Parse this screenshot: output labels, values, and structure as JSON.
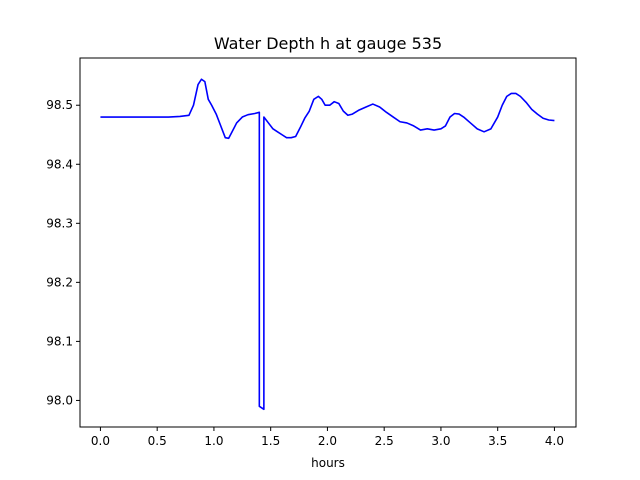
{
  "chart_data": {
    "type": "line",
    "title": "Water Depth h at gauge 535",
    "xlabel": "hours",
    "ylabel": "",
    "xlim": [
      -0.18,
      4.19
    ],
    "ylim": [
      97.955,
      98.58
    ],
    "xticks": [
      0.0,
      0.5,
      1.0,
      1.5,
      2.0,
      2.5,
      3.0,
      3.5,
      4.0
    ],
    "xtick_labels": [
      "0.0",
      "0.5",
      "1.0",
      "1.5",
      "2.0",
      "2.5",
      "3.0",
      "3.5",
      "4.0"
    ],
    "yticks": [
      98.0,
      98.1,
      98.2,
      98.3,
      98.4,
      98.5
    ],
    "ytick_labels": [
      "98.0",
      "98.1",
      "98.2",
      "98.3",
      "98.4",
      "98.5"
    ],
    "grid": false,
    "series": [
      {
        "color": "#0000ff",
        "x": [
          0.0,
          0.3,
          0.6,
          0.7,
          0.78,
          0.82,
          0.86,
          0.89,
          0.92,
          0.95,
          0.98,
          1.02,
          1.06,
          1.1,
          1.13,
          1.16,
          1.2,
          1.25,
          1.3,
          1.36,
          1.4,
          1.4,
          1.44,
          1.44,
          1.48,
          1.52,
          1.56,
          1.6,
          1.64,
          1.68,
          1.72,
          1.76,
          1.8,
          1.84,
          1.88,
          1.92,
          1.95,
          1.98,
          2.02,
          2.06,
          2.1,
          2.14,
          2.18,
          2.22,
          2.28,
          2.34,
          2.4,
          2.46,
          2.52,
          2.58,
          2.64,
          2.7,
          2.76,
          2.82,
          2.88,
          2.94,
          3.0,
          3.04,
          3.08,
          3.12,
          3.16,
          3.2,
          3.26,
          3.32,
          3.38,
          3.44,
          3.5,
          3.54,
          3.58,
          3.62,
          3.66,
          3.7,
          3.75,
          3.8,
          3.85,
          3.9,
          3.95,
          4.0
        ],
        "values": [
          98.48,
          98.48,
          98.48,
          98.481,
          98.483,
          98.5,
          98.535,
          98.544,
          98.54,
          98.51,
          98.5,
          98.485,
          98.465,
          98.445,
          98.444,
          98.455,
          98.47,
          98.48,
          98.484,
          98.486,
          98.488,
          97.99,
          97.985,
          98.48,
          98.47,
          98.46,
          98.455,
          98.45,
          98.445,
          98.445,
          98.447,
          98.462,
          98.478,
          98.49,
          98.51,
          98.515,
          98.51,
          98.5,
          98.5,
          98.506,
          98.503,
          98.49,
          98.483,
          98.485,
          98.492,
          98.497,
          98.502,
          98.497,
          98.488,
          98.48,
          98.472,
          98.47,
          98.465,
          98.458,
          98.46,
          98.458,
          98.46,
          98.465,
          98.48,
          98.486,
          98.485,
          98.48,
          98.47,
          98.46,
          98.455,
          98.46,
          98.48,
          98.5,
          98.515,
          98.52,
          98.52,
          98.515,
          98.505,
          98.493,
          98.485,
          98.478,
          98.475,
          98.474
        ]
      }
    ]
  }
}
